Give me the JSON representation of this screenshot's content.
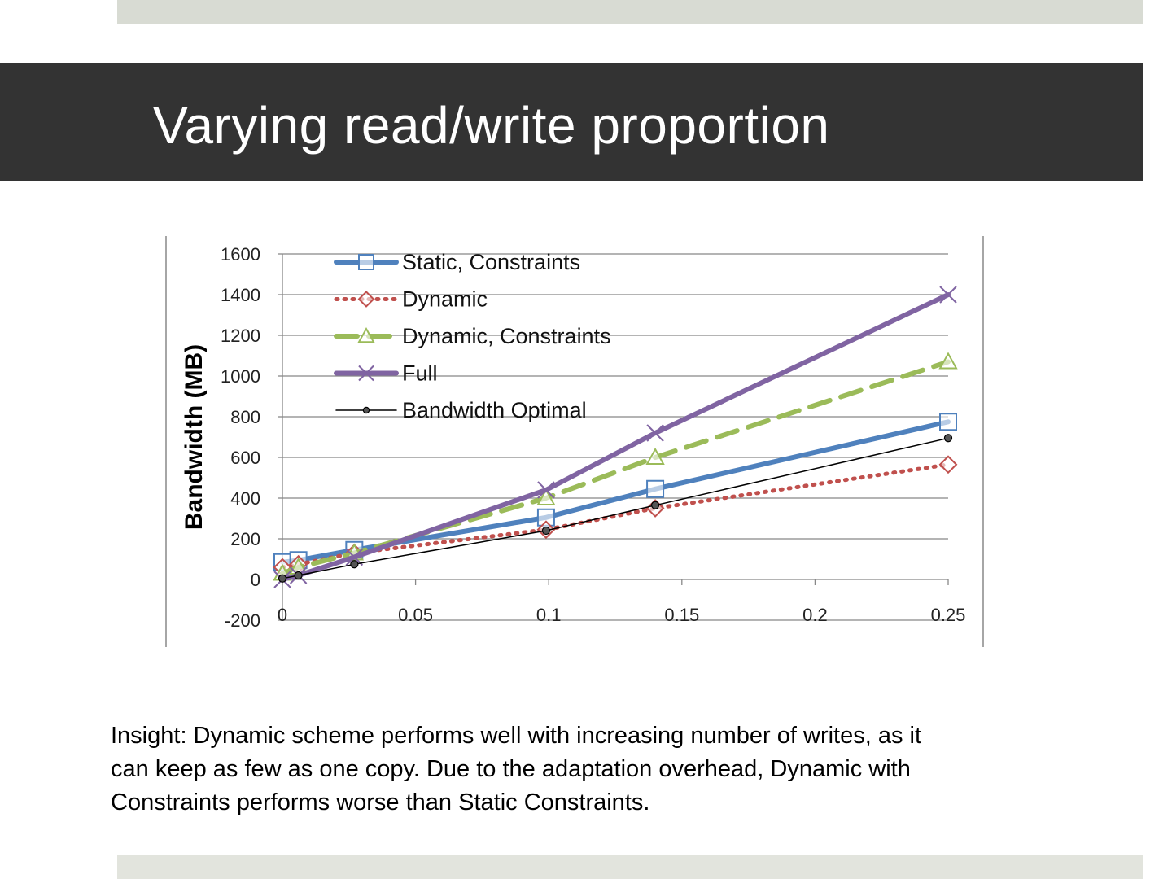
{
  "slide": {
    "title": "Varying read/write proportion",
    "insight": "Insight: Dynamic scheme performs well with increasing number of writes, as it\ncan keep as few as one copy.  Due to the adaptation overhead, Dynamic with\nConstraints performs worse than Static Constraints."
  },
  "colors": {
    "title_bar": "#333333",
    "top_band": "#d8dbd3",
    "bottom_band": "#e2e4dd"
  },
  "chart_data": {
    "type": "line",
    "title": "",
    "xlabel": "",
    "ylabel": "Bandwidth (MB)",
    "xlim": [
      0,
      0.25
    ],
    "ylim": [
      -200,
      1600
    ],
    "x_ticks": [
      0,
      0.05,
      0.1,
      0.15,
      0.2,
      0.25
    ],
    "x_tick_labels": [
      "0",
      "0.05",
      "0.1",
      "0.15",
      "0.2",
      "0.25"
    ],
    "y_ticks": [
      -200,
      0,
      200,
      400,
      600,
      800,
      1000,
      1200,
      1400,
      1600
    ],
    "y_tick_labels": [
      "-200",
      "0",
      "200",
      "400",
      "600",
      "800",
      "1000",
      "1200",
      "1400",
      "1600"
    ],
    "grid": true,
    "legend_position": "top-left",
    "series": [
      {
        "name": "Static, Constraints",
        "color": "#4f81bd",
        "style": "solid",
        "width": 6,
        "marker": "square",
        "points": [
          [
            0,
            85
          ],
          [
            0.006,
            95
          ],
          [
            0.027,
            145
          ],
          [
            0.099,
            305
          ],
          [
            0.14,
            445
          ],
          [
            0.25,
            775
          ]
        ]
      },
      {
        "name": "Dynamic",
        "color": "#c0504d",
        "style": "dotted",
        "width": 5,
        "marker": "diamond",
        "points": [
          [
            0,
            60
          ],
          [
            0.006,
            75
          ],
          [
            0.027,
            130
          ],
          [
            0.099,
            245
          ],
          [
            0.14,
            350
          ],
          [
            0.25,
            565
          ]
        ]
      },
      {
        "name": "Dynamic, Constraints",
        "color": "#9bbb59",
        "style": "dashed",
        "width": 6,
        "marker": "triangle",
        "points": [
          [
            0,
            30
          ],
          [
            0.006,
            60
          ],
          [
            0.027,
            130
          ],
          [
            0.099,
            400
          ],
          [
            0.14,
            600
          ],
          [
            0.25,
            1070
          ]
        ]
      },
      {
        "name": "Full",
        "color": "#8064a2",
        "style": "solid",
        "width": 6,
        "marker": "x",
        "points": [
          [
            0,
            0
          ],
          [
            0.006,
            20
          ],
          [
            0.027,
            110
          ],
          [
            0.099,
            440
          ],
          [
            0.14,
            720
          ],
          [
            0.25,
            1400
          ]
        ]
      },
      {
        "name": "Bandwidth Optimal",
        "color": "#000000",
        "style": "solid",
        "width": 1.5,
        "marker": "dot",
        "points": [
          [
            0,
            5
          ],
          [
            0.006,
            20
          ],
          [
            0.027,
            75
          ],
          [
            0.099,
            240
          ],
          [
            0.14,
            365
          ],
          [
            0.25,
            695
          ]
        ]
      }
    ]
  }
}
